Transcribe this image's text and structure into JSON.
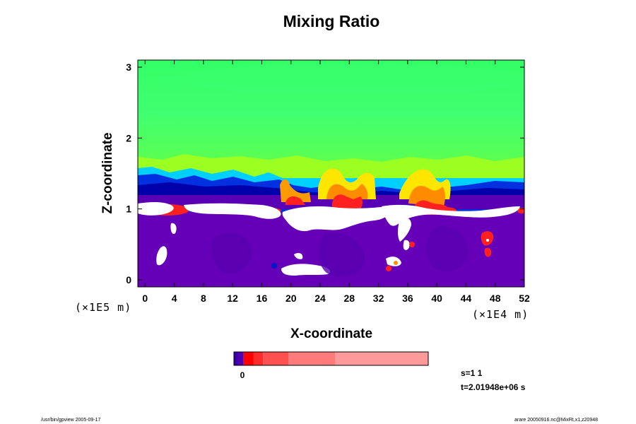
{
  "chart_data": {
    "type": "heatmap",
    "title": "Mixing Ratio",
    "xlabel": "X-coordinate",
    "ylabel": "Z-coordinate",
    "x_scale_label": "(×1E4 m)",
    "y_scale_label": "(×1E5 m)",
    "xlim": [
      -1,
      52
    ],
    "ylim": [
      -0.1,
      3.1
    ],
    "x_ticks": [
      "0",
      "4",
      "8",
      "12",
      "16",
      "20",
      "24",
      "28",
      "32",
      "36",
      "40",
      "44",
      "48",
      "52"
    ],
    "x_tick_values": [
      0,
      4,
      8,
      12,
      16,
      20,
      24,
      28,
      32,
      36,
      40,
      44,
      48,
      52
    ],
    "y_ticks": [
      "0",
      "1",
      "2",
      "3"
    ],
    "y_tick_values": [
      0,
      1,
      2,
      3
    ],
    "colorbar": {
      "label": "0",
      "colors": [
        "#3a00a8",
        "#5000b0",
        "#ff0000",
        "#ff2a2a",
        "#ff5050",
        "#ff7a7a",
        "#ff9a9a"
      ],
      "ranges": [
        [
          0,
          0.02
        ],
        [
          0.02,
          0.05
        ],
        [
          0.05,
          0.1
        ],
        [
          0.1,
          0.15
        ],
        [
          0.15,
          0.28
        ],
        [
          0.28,
          0.52
        ],
        [
          0.52,
          1.0
        ]
      ]
    },
    "palette": {
      "background": "#6600b8",
      "upper": "#33ff66",
      "upper_light": "#44ff77",
      "transition_blue": "#0018c8",
      "dark_blue": "#0000aa",
      "cyan": "#00c8ff",
      "yellow": "#ffe600",
      "orange": "#ff8c00",
      "red": "#ff2020",
      "cloud": "#ffffff"
    }
  },
  "info": {
    "step": "s=1 1",
    "time": "t=2.01948e+06 s"
  },
  "footer": {
    "left": "/usr/bin/gpview 2005-09-17",
    "right": "arare 20050916.nc@MixRt,x1,z20948"
  }
}
